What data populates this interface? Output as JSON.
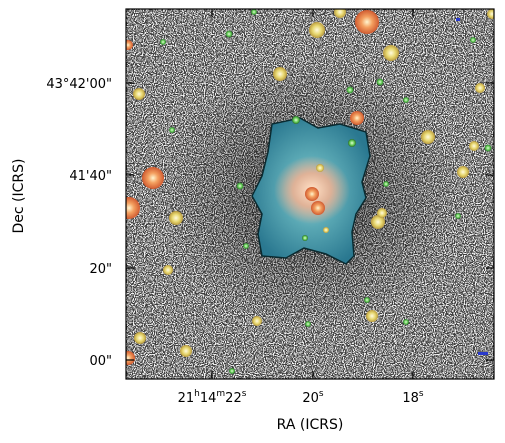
{
  "plot": {
    "xlabel": "RA (ICRS)",
    "ylabel": "Dec (ICRS)",
    "xticks": [
      {
        "main": "21",
        "sup1": "h",
        "mid": "14",
        "sup2": "m",
        "tail": "22",
        "sup3": "s"
      },
      {
        "main": "20",
        "sup3": "s"
      },
      {
        "main": "18",
        "sup3": "s"
      }
    ],
    "yticks": [
      "43°42'00\"",
      "41'40\"",
      "20\"",
      "00\""
    ]
  },
  "image": {
    "subject": "nebula with surrounding star field",
    "colors": {
      "nebula_outer": "#2b7f93",
      "nebula_inner": "#8ec9c8",
      "core": "#f0b090",
      "star_orange": "#f07840",
      "star_yellow": "#e8e070",
      "star_green": "#50c850",
      "background": "#f4f4f4",
      "noise": "#2a2a2a"
    }
  }
}
